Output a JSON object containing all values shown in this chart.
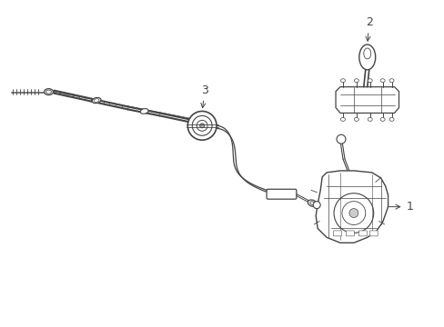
{
  "background_color": "#ffffff",
  "line_color": "#444444",
  "fig_width": 4.89,
  "fig_height": 3.6,
  "dpi": 100,
  "label_1": "1",
  "label_2": "2",
  "label_3": "3"
}
